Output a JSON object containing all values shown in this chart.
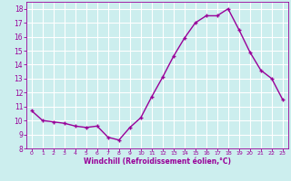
{
  "x": [
    0,
    1,
    2,
    3,
    4,
    5,
    6,
    7,
    8,
    9,
    10,
    11,
    12,
    13,
    14,
    15,
    16,
    17,
    18,
    19,
    20,
    21,
    22,
    23
  ],
  "y": [
    10.7,
    10.0,
    9.9,
    9.8,
    9.6,
    9.5,
    9.6,
    8.8,
    8.6,
    9.5,
    10.2,
    11.7,
    13.1,
    14.6,
    15.9,
    17.0,
    17.5,
    17.5,
    18.0,
    16.5,
    14.9,
    13.6,
    13.0,
    11.5
  ],
  "line_color": "#990099",
  "marker": "+",
  "marker_size": 3.5,
  "bg_color": "#cceeee",
  "grid_color": "#ffffff",
  "xlabel": "Windchill (Refroidissement éolien,°C)",
  "xlabel_color": "#990099",
  "tick_color": "#990099",
  "xlim": [
    -0.5,
    23.5
  ],
  "ylim": [
    8,
    18.5
  ],
  "yticks": [
    8,
    9,
    10,
    11,
    12,
    13,
    14,
    15,
    16,
    17,
    18
  ],
  "xticks": [
    0,
    1,
    2,
    3,
    4,
    5,
    6,
    7,
    8,
    9,
    10,
    11,
    12,
    13,
    14,
    15,
    16,
    17,
    18,
    19,
    20,
    21,
    22,
    23
  ],
  "line_width": 1.0,
  "axis_color": "#990099"
}
